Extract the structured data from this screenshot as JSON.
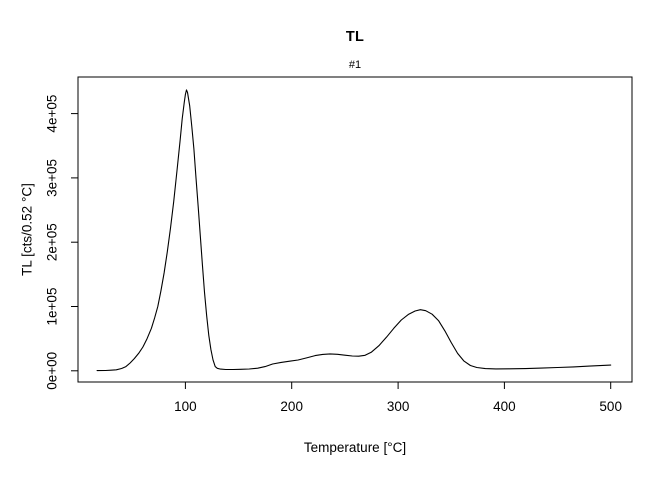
{
  "figure": {
    "background": "#ffffff",
    "text_color": "#000000"
  },
  "chart_data": {
    "type": "line",
    "title": "TL",
    "subtitle": "#1",
    "xlabel": "Temperature [°C]",
    "ylabel": "TL [cts/0.52 °C]",
    "grid": false,
    "legend": "none",
    "line_color": "#000000",
    "axis_color": "#000000",
    "x_axis": {
      "min": -1,
      "max": 520,
      "ticks": [
        100,
        200,
        300,
        400,
        500
      ],
      "tick_labels": [
        "100",
        "200",
        "300",
        "400",
        "500"
      ]
    },
    "y_axis": {
      "min": -17500,
      "max": 457000,
      "ticks": [
        0,
        100000,
        200000,
        300000,
        400000
      ],
      "tick_labels": [
        "0e+00",
        "1e+05",
        "2e+05",
        "3e+05",
        "4e+05"
      ]
    },
    "series": [
      {
        "name": "#1",
        "points": [
          [
            17,
            200
          ],
          [
            25,
            400
          ],
          [
            30,
            800
          ],
          [
            35,
            1500
          ],
          [
            40,
            3500
          ],
          [
            44,
            6500
          ],
          [
            48,
            12000
          ],
          [
            52,
            19000
          ],
          [
            56,
            27000
          ],
          [
            60,
            37000
          ],
          [
            64,
            50000
          ],
          [
            68,
            66000
          ],
          [
            71,
            82000
          ],
          [
            74,
            100000
          ],
          [
            77,
            124000
          ],
          [
            80,
            152000
          ],
          [
            83,
            185000
          ],
          [
            86,
            222000
          ],
          [
            89,
            263000
          ],
          [
            92,
            310000
          ],
          [
            95,
            358000
          ],
          [
            97,
            392000
          ],
          [
            99,
            418000
          ],
          [
            100,
            430000
          ],
          [
            101,
            437000
          ],
          [
            102,
            433000
          ],
          [
            104,
            412000
          ],
          [
            106,
            380000
          ],
          [
            108,
            345000
          ],
          [
            110,
            300000
          ],
          [
            112,
            255000
          ],
          [
            114,
            210000
          ],
          [
            116,
            165000
          ],
          [
            118,
            122000
          ],
          [
            120,
            85000
          ],
          [
            122,
            55000
          ],
          [
            124,
            33000
          ],
          [
            126,
            17000
          ],
          [
            128,
            6500
          ],
          [
            130,
            3800
          ],
          [
            133,
            2500
          ],
          [
            138,
            2000
          ],
          [
            145,
            2000
          ],
          [
            152,
            2300
          ],
          [
            160,
            2800
          ],
          [
            168,
            4000
          ],
          [
            175,
            6500
          ],
          [
            182,
            10500
          ],
          [
            190,
            13000
          ],
          [
            198,
            14800
          ],
          [
            206,
            16700
          ],
          [
            214,
            20000
          ],
          [
            222,
            23500
          ],
          [
            229,
            25500
          ],
          [
            236,
            26200
          ],
          [
            243,
            25600
          ],
          [
            250,
            24200
          ],
          [
            257,
            23000
          ],
          [
            263,
            22600
          ],
          [
            269,
            24000
          ],
          [
            275,
            29000
          ],
          [
            282,
            39000
          ],
          [
            289,
            52000
          ],
          [
            296,
            66000
          ],
          [
            303,
            79000
          ],
          [
            310,
            88000
          ],
          [
            316,
            93000
          ],
          [
            321,
            95000
          ],
          [
            326,
            93500
          ],
          [
            332,
            88000
          ],
          [
            338,
            78000
          ],
          [
            344,
            62000
          ],
          [
            350,
            44000
          ],
          [
            356,
            27000
          ],
          [
            362,
            15000
          ],
          [
            368,
            8200
          ],
          [
            374,
            5000
          ],
          [
            382,
            3400
          ],
          [
            392,
            2900
          ],
          [
            405,
            3000
          ],
          [
            420,
            3400
          ],
          [
            435,
            4100
          ],
          [
            450,
            5000
          ],
          [
            465,
            6000
          ],
          [
            480,
            7200
          ],
          [
            500,
            8800
          ]
        ]
      }
    ]
  }
}
